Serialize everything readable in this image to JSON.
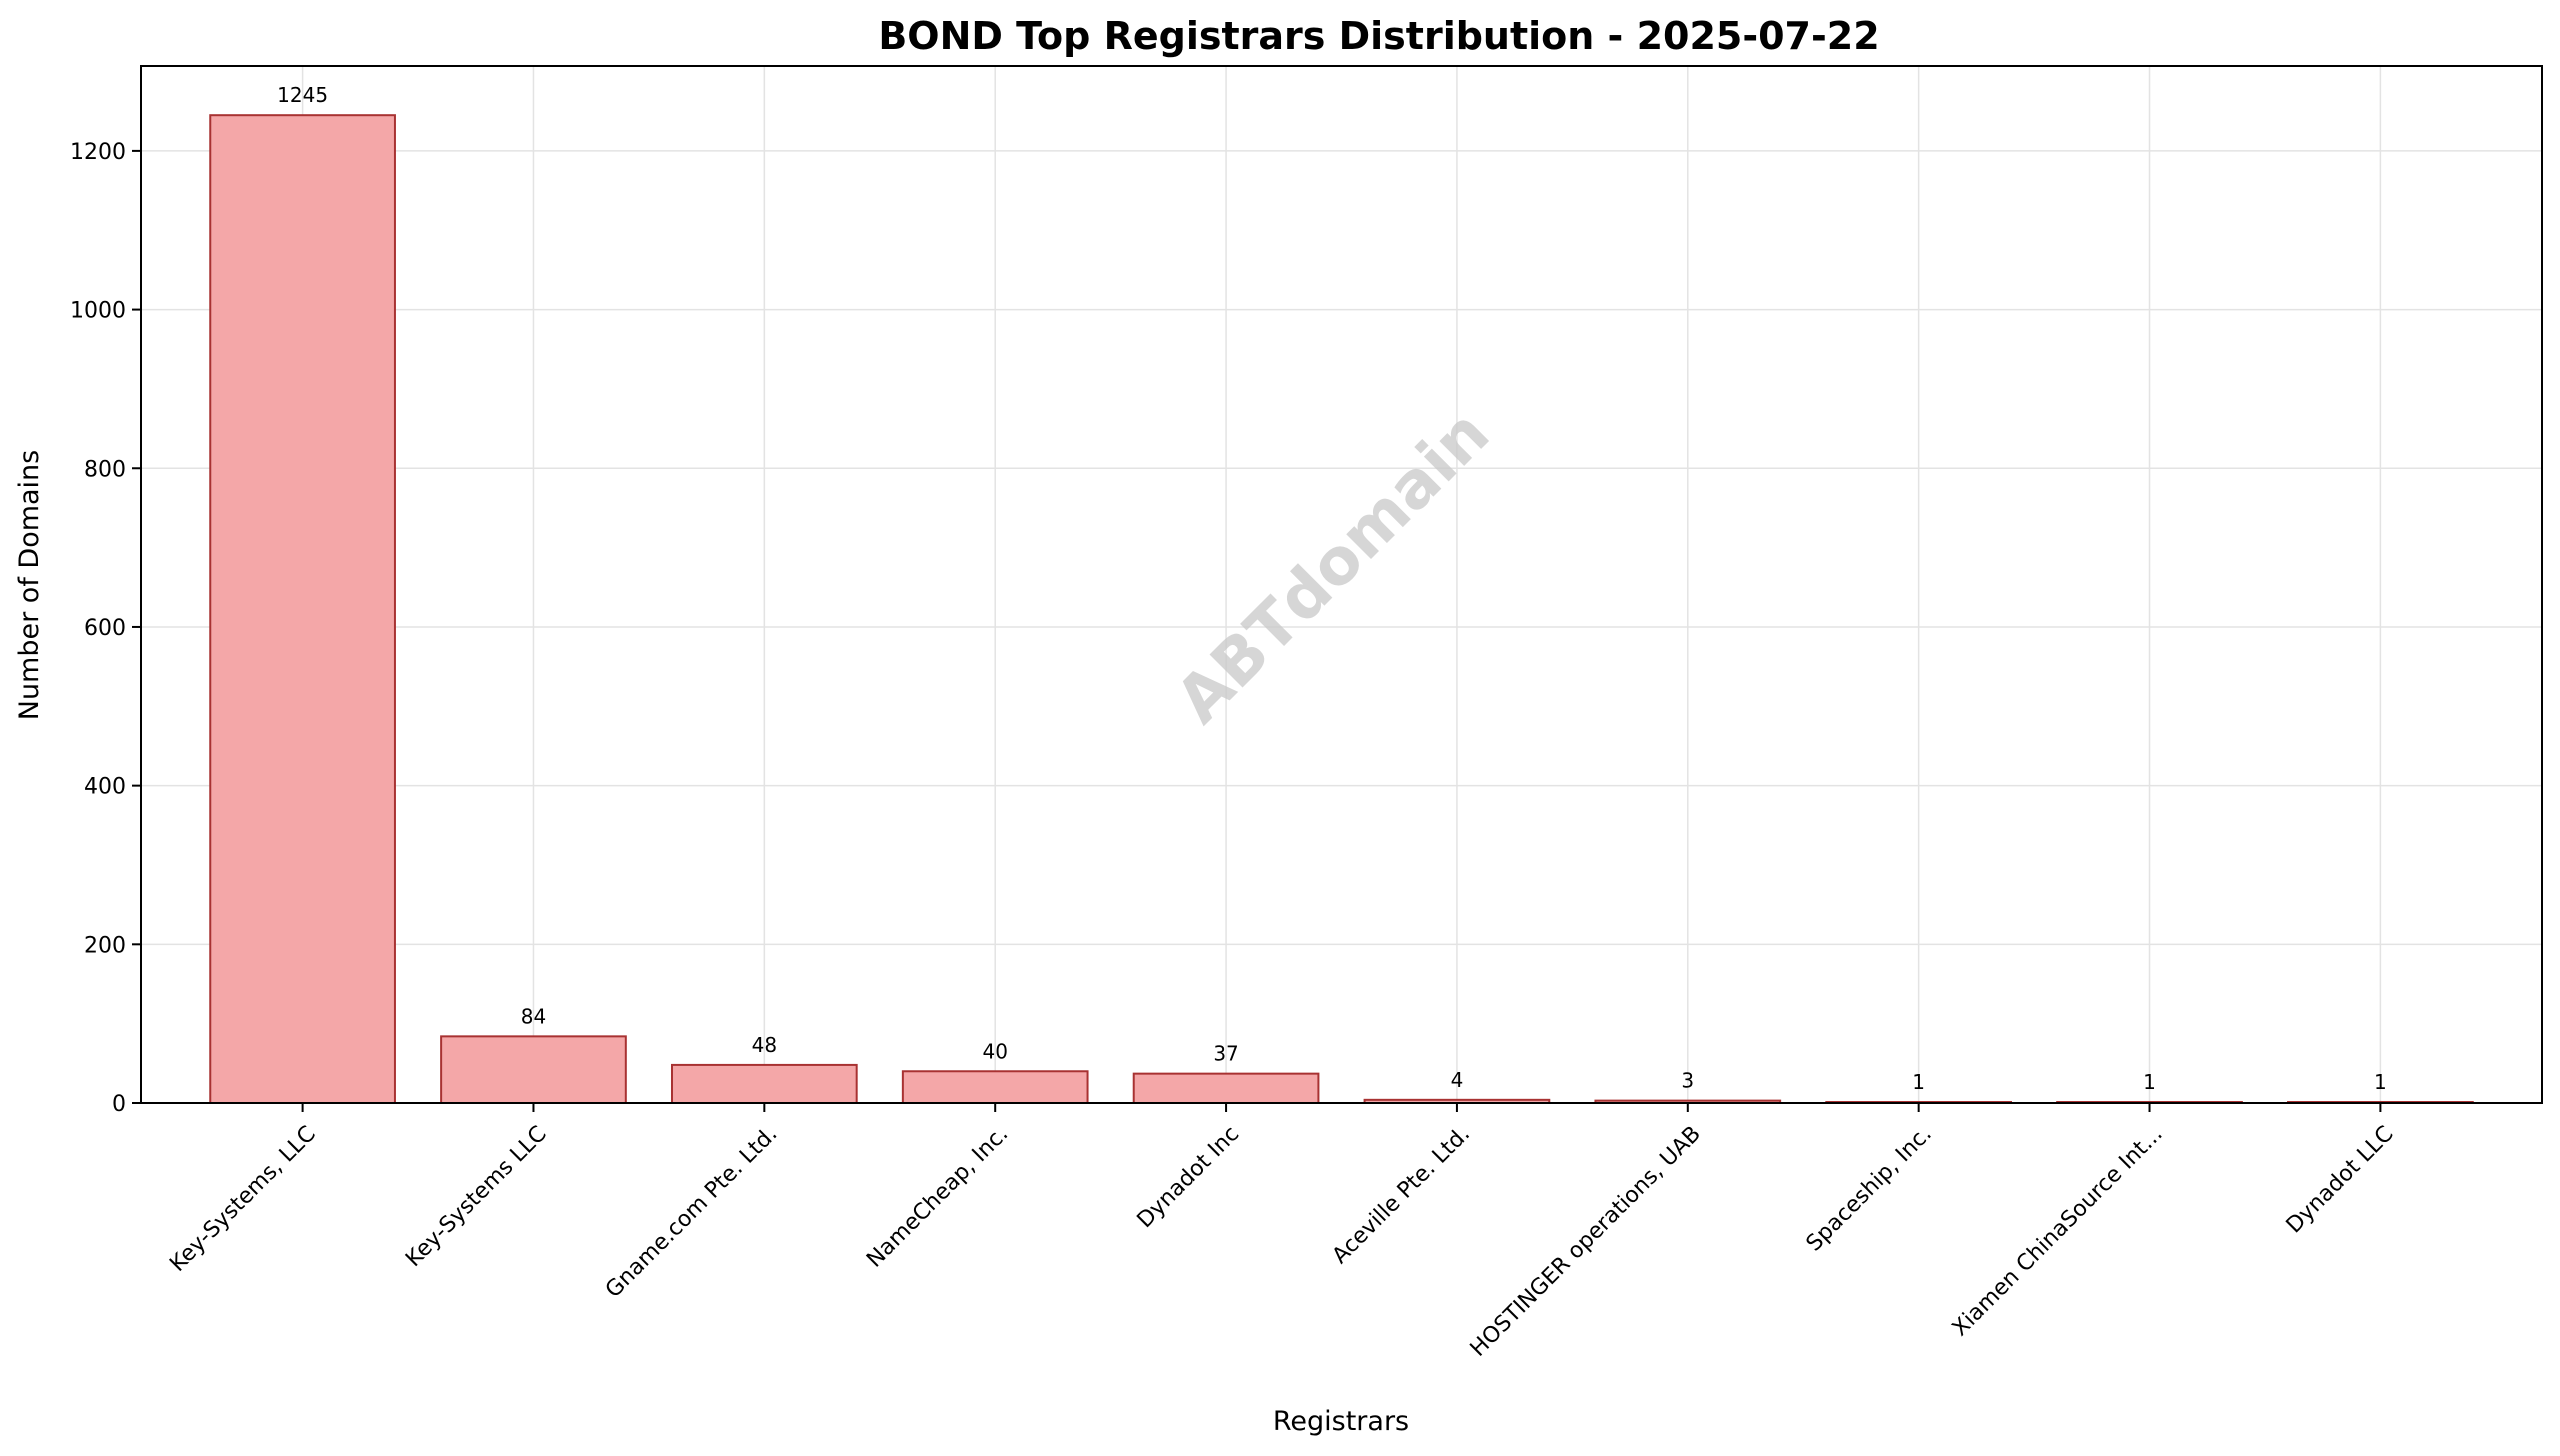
{
  "chart_data": {
    "type": "bar",
    "title": "BOND Top Registrars Distribution - 2025-07-22",
    "xlabel": "Registrars",
    "ylabel": "Number of Domains",
    "categories": [
      "Key-Systems, LLC",
      "Key-Systems LLC",
      "Gname.com Pte. Ltd.",
      "NameCheap, Inc.",
      "Dynadot Inc",
      "Aceville Pte. Ltd.",
      "HOSTINGER operations, UAB",
      "Spaceship, Inc.",
      "Xiamen ChinaSource Int...",
      "Dynadot LLC"
    ],
    "values": [
      1245,
      84,
      48,
      40,
      37,
      4,
      3,
      1,
      1,
      1
    ],
    "data_labels": [
      "1245",
      "84",
      "48",
      "40",
      "37",
      "4",
      "3",
      "1",
      "1",
      "1"
    ],
    "ylim": [
      0,
      1307
    ],
    "yticks": [
      0,
      200,
      400,
      600,
      800,
      1000,
      1200
    ],
    "ytick_labels": [
      "0",
      "200",
      "400",
      "600",
      "800",
      "1000",
      "1200"
    ],
    "grid": true,
    "watermark": "ABTdomain",
    "colors": {
      "bar_fill": "#f4a7a8",
      "bar_edge": "#a83232",
      "grid": "#e3e3e3",
      "axis": "#000000"
    }
  }
}
